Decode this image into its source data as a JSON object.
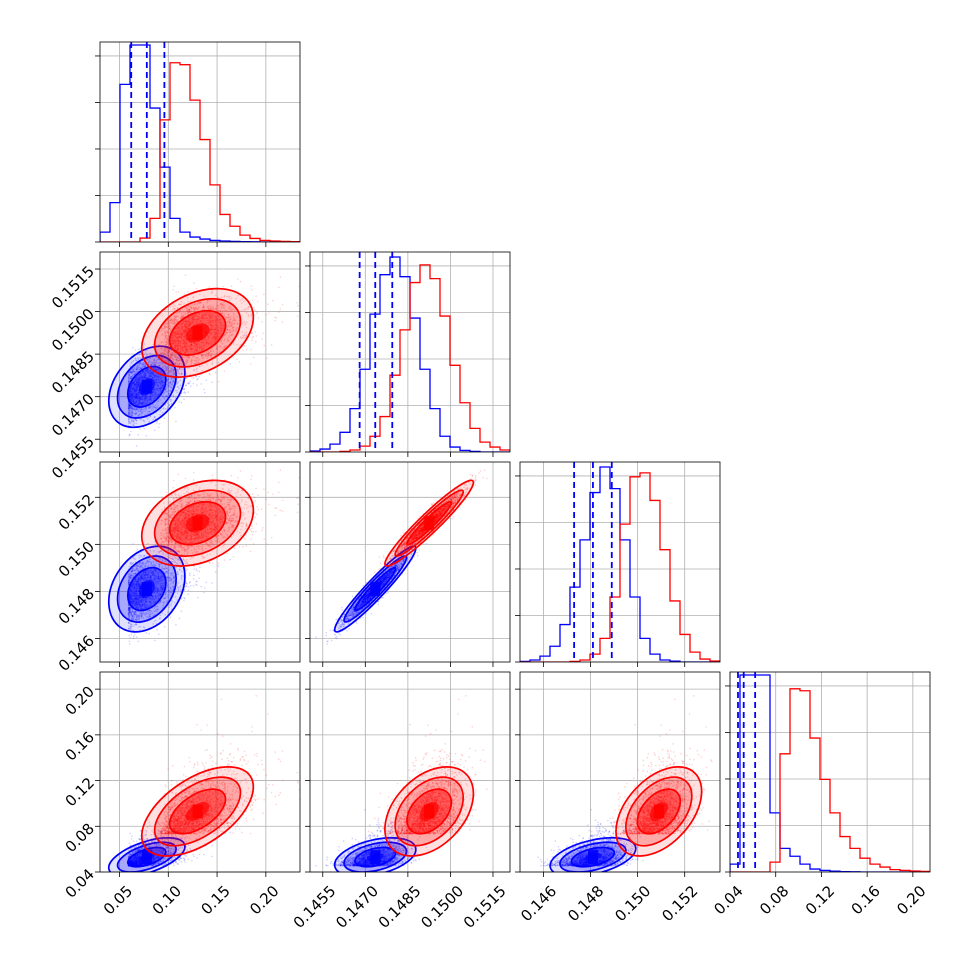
{
  "colors": {
    "series_a": "#0000ff",
    "series_b": "#ff0000",
    "grid": "#b0b0b0",
    "axis": "#000000"
  },
  "chart_data": {
    "type": "corner",
    "title": "",
    "parameters": [
      {
        "key": "p1",
        "xlim": [
          0.03,
          0.235
        ],
        "ticks": [
          0.05,
          0.1,
          0.15,
          0.2
        ],
        "tick_labels": [
          "0.05",
          "0.10",
          "0.15",
          "0.20"
        ]
      },
      {
        "key": "p2",
        "xlim": [
          0.14505,
          0.1521
        ],
        "ticks": [
          0.1455,
          0.147,
          0.1485,
          0.15,
          0.1515
        ],
        "tick_labels": [
          "0.1455",
          "0.1470",
          "0.1485",
          "0.1500",
          "0.1515"
        ]
      },
      {
        "key": "p3",
        "xlim": [
          0.145,
          0.1535
        ],
        "ticks": [
          0.146,
          0.148,
          0.15,
          0.152
        ],
        "tick_labels": [
          "0.146",
          "0.148",
          "0.150",
          "0.152"
        ]
      },
      {
        "key": "p4",
        "xlim": [
          0.04,
          0.215
        ],
        "ticks": [
          0.04,
          0.08,
          0.12,
          0.16,
          0.2
        ],
        "tick_labels": [
          "0.04",
          "0.08",
          "0.12",
          "0.16",
          "0.20"
        ]
      }
    ],
    "series": [
      {
        "name": "",
        "color": "#0000ff",
        "mean": [
          0.078,
          0.14735,
          0.1481,
          0.053
        ],
        "sd": [
          0.015,
          0.00055,
          0.0007,
          0.0065
        ],
        "skew": [
          1.4,
          0.0,
          0.0,
          1.6
        ],
        "quantiles": {
          "p1": [
            0.062,
            0.078,
            0.096
          ],
          "p2": [
            0.1468,
            0.14735,
            0.14795
          ],
          "p3": [
            0.1473,
            0.1481,
            0.1489
          ],
          "p4": [
            0.047,
            0.052,
            0.062
          ]
        },
        "hist_counts": {
          "p1": [
            50,
            200,
            800,
            1000,
            1000,
            680,
            380,
            120,
            50,
            25,
            15,
            8,
            5,
            3,
            2,
            1,
            0,
            0,
            0,
            0
          ],
          "p2": [
            5,
            15,
            40,
            100,
            220,
            420,
            700,
            900,
            990,
            890,
            680,
            420,
            220,
            80,
            25,
            8,
            3,
            0,
            0,
            0
          ],
          "p3": [
            3,
            10,
            30,
            80,
            190,
            380,
            620,
            860,
            990,
            880,
            620,
            330,
            120,
            40,
            10,
            4,
            0,
            0,
            0,
            0
          ],
          "p4": [
            40,
            1000,
            1000,
            1000,
            300,
            120,
            80,
            40,
            15,
            8,
            4,
            2,
            1,
            0,
            0,
            0,
            0,
            0,
            0,
            0
          ]
        }
      },
      {
        "name": "",
        "color": "#ff0000",
        "mean": [
          0.13,
          0.14925,
          0.1509,
          0.093
        ],
        "sd": [
          0.022,
          0.0006,
          0.0007,
          0.015
        ],
        "skew": [
          0.9,
          0.0,
          0.0,
          1.3
        ],
        "hist_counts": {
          "p1": [
            0,
            0,
            0,
            0,
            20,
            120,
            620,
            910,
            900,
            720,
            520,
            290,
            140,
            80,
            35,
            18,
            8,
            5,
            3,
            2
          ],
          "p2": [
            0,
            0,
            0,
            3,
            10,
            30,
            80,
            180,
            390,
            620,
            860,
            950,
            880,
            690,
            440,
            250,
            120,
            50,
            25,
            10
          ],
          "p3": [
            0,
            0,
            0,
            0,
            0,
            3,
            10,
            40,
            120,
            330,
            700,
            940,
            960,
            820,
            570,
            310,
            140,
            50,
            15,
            5
          ],
          "p4": [
            0,
            0,
            0,
            0,
            50,
            600,
            930,
            920,
            680,
            470,
            300,
            180,
            120,
            70,
            40,
            25,
            12,
            8,
            5,
            3
          ]
        }
      }
    ],
    "correlations": {
      "p1_p2": 0.35,
      "p1_p3": 0.3,
      "p1_p4": 0.55,
      "p2_p3": 0.95,
      "p2_p4": 0.4,
      "p3_p4": 0.45
    },
    "contour_levels": [
      0.393,
      0.865,
      0.989
    ],
    "grid": true,
    "legend": "none"
  }
}
